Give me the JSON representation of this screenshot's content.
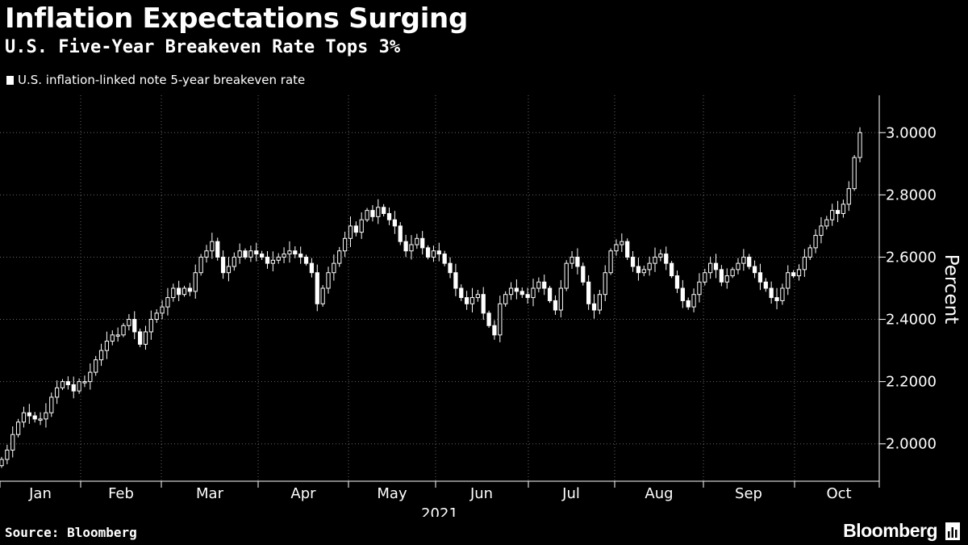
{
  "chart_data": {
    "type": "candlestick",
    "title": "Inflation Expectations Surging",
    "subtitle": "U.S. Five-Year Breakeven Rate Tops 3%",
    "series_name": "U.S. inflation-linked note 5-year breakeven rate",
    "ylabel": "Percent",
    "xlabel": "2021",
    "ylim": [
      1.88,
      3.12
    ],
    "yticks": [
      "2.0000",
      "2.2000",
      "2.4000",
      "2.6000",
      "2.8000",
      "3.0000"
    ],
    "x_categories": [
      "Jan",
      "Feb",
      "Mar",
      "Apr",
      "May",
      "Jun",
      "Jul",
      "Aug",
      "Sep",
      "Oct"
    ],
    "grid": true,
    "daily_close": [
      1.95,
      1.98,
      2.03,
      2.07,
      2.1,
      2.09,
      2.08,
      2.08,
      2.1,
      2.15,
      2.18,
      2.2,
      2.19,
      2.17,
      2.2,
      2.2,
      2.23,
      2.27,
      2.3,
      2.33,
      2.35,
      2.35,
      2.38,
      2.4,
      2.36,
      2.32,
      2.36,
      2.4,
      2.42,
      2.44,
      2.47,
      2.5,
      2.48,
      2.5,
      2.49,
      2.55,
      2.6,
      2.62,
      2.65,
      2.6,
      2.55,
      2.57,
      2.6,
      2.62,
      2.6,
      2.62,
      2.61,
      2.6,
      2.58,
      2.59,
      2.6,
      2.61,
      2.62,
      2.61,
      2.6,
      2.58,
      2.55,
      2.45,
      2.5,
      2.55,
      2.58,
      2.62,
      2.66,
      2.7,
      2.68,
      2.72,
      2.75,
      2.73,
      2.76,
      2.74,
      2.72,
      2.7,
      2.65,
      2.62,
      2.64,
      2.66,
      2.63,
      2.6,
      2.62,
      2.61,
      2.58,
      2.55,
      2.5,
      2.47,
      2.45,
      2.47,
      2.48,
      2.42,
      2.38,
      2.35,
      2.45,
      2.48,
      2.5,
      2.49,
      2.48,
      2.47,
      2.5,
      2.52,
      2.5,
      2.46,
      2.43,
      2.5,
      2.58,
      2.6,
      2.57,
      2.52,
      2.45,
      2.43,
      2.48,
      2.55,
      2.62,
      2.64,
      2.65,
      2.6,
      2.57,
      2.55,
      2.56,
      2.58,
      2.6,
      2.61,
      2.58,
      2.54,
      2.5,
      2.46,
      2.44,
      2.48,
      2.52,
      2.55,
      2.58,
      2.56,
      2.52,
      2.54,
      2.56,
      2.58,
      2.6,
      2.57,
      2.55,
      2.52,
      2.5,
      2.47,
      2.46,
      2.5,
      2.55,
      2.54,
      2.56,
      2.6,
      2.63,
      2.67,
      2.7,
      2.72,
      2.75,
      2.74,
      2.77,
      2.82,
      2.92,
      3.0
    ]
  },
  "footer": {
    "source": "Source: Bloomberg",
    "brand": "Bloomberg"
  },
  "colors": {
    "background": "#000000",
    "foreground": "#ffffff",
    "grid": "#666666"
  },
  "icons": {
    "brand": "bar-chart-icon"
  }
}
